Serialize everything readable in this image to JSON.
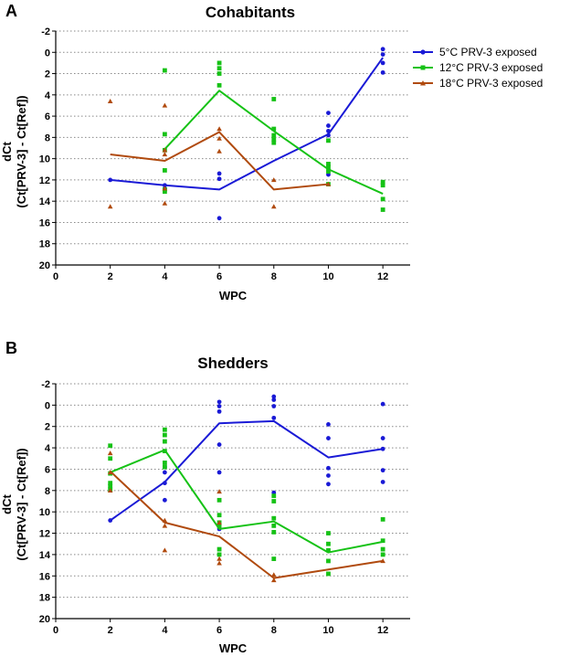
{
  "colors": {
    "5C": "#1a1ad6",
    "12C": "#16c216",
    "18C": "#b04a0e",
    "grid": "#8a8a8a",
    "axis": "#000000"
  },
  "chart_data": [
    {
      "panel": "A",
      "type": "scatter",
      "title": "Cohabitants",
      "xlabel": "WPC",
      "ylabel": "dCt",
      "ylabel2": "(Ct[PRV-3] - Ct[Ref])",
      "xlim": [
        0,
        13
      ],
      "ylim": [
        -2,
        20
      ],
      "y_inverted": true,
      "xticks": [
        0,
        2,
        4,
        6,
        8,
        10,
        12
      ],
      "yticks": [
        -2,
        0,
        2,
        4,
        6,
        8,
        10,
        12,
        14,
        16,
        18,
        20
      ],
      "grid": "horizontal dotted",
      "legend": "top-right",
      "series": [
        {
          "name": "5°C PRV-3 exposed",
          "color_key": "5C",
          "marker": "circle",
          "mean_line": [
            [
              2,
              12.0
            ],
            [
              4,
              12.5
            ],
            [
              6,
              12.9
            ],
            [
              8,
              10.2
            ],
            [
              10,
              7.7
            ],
            [
              12,
              0.5
            ]
          ],
          "points": [
            [
              2,
              12.0
            ],
            [
              4,
              12.5
            ],
            [
              4,
              12.8
            ],
            [
              6,
              11.4
            ],
            [
              6,
              11.9
            ],
            [
              6,
              15.6
            ],
            [
              10,
              5.7
            ],
            [
              10,
              6.9
            ],
            [
              10,
              7.4
            ],
            [
              10,
              7.8
            ],
            [
              10,
              11.5
            ],
            [
              12,
              -0.3
            ],
            [
              12,
              0.2
            ],
            [
              12,
              1.0
            ],
            [
              12,
              1.9
            ]
          ]
        },
        {
          "name": "12°C PRV-3 exposed",
          "color_key": "12C",
          "marker": "square",
          "mean_line": [
            [
              4,
              9.1
            ],
            [
              6,
              3.6
            ],
            [
              8,
              7.4
            ],
            [
              10,
              11.0
            ],
            [
              12,
              13.3
            ]
          ],
          "points": [
            [
              4,
              1.7
            ],
            [
              4,
              7.7
            ],
            [
              4,
              9.2
            ],
            [
              4,
              11.1
            ],
            [
              4,
              12.9
            ],
            [
              4,
              13.1
            ],
            [
              6,
              1.0
            ],
            [
              6,
              1.5
            ],
            [
              6,
              2.0
            ],
            [
              6,
              3.1
            ],
            [
              8,
              4.4
            ],
            [
              8,
              7.2
            ],
            [
              8,
              7.8
            ],
            [
              8,
              8.2
            ],
            [
              8,
              8.5
            ],
            [
              10,
              8.3
            ],
            [
              10,
              10.5
            ],
            [
              10,
              10.8
            ],
            [
              10,
              11.2
            ],
            [
              10,
              12.4
            ],
            [
              12,
              12.2
            ],
            [
              12,
              12.5
            ],
            [
              12,
              13.8
            ],
            [
              12,
              14.8
            ]
          ]
        },
        {
          "name": "18°C PRV-3 exposed",
          "color_key": "18C",
          "marker": "triangle",
          "mean_line": [
            [
              2,
              9.6
            ],
            [
              4,
              10.2
            ],
            [
              6,
              7.5
            ],
            [
              8,
              12.9
            ],
            [
              10,
              12.4
            ]
          ],
          "points": [
            [
              2,
              4.6
            ],
            [
              2,
              14.5
            ],
            [
              4,
              5.0
            ],
            [
              4,
              9.2
            ],
            [
              4,
              9.6
            ],
            [
              4,
              12.8
            ],
            [
              4,
              14.2
            ],
            [
              6,
              7.2
            ],
            [
              6,
              8.1
            ],
            [
              6,
              9.3
            ],
            [
              8,
              12.0
            ],
            [
              8,
              14.5
            ],
            [
              10,
              12.4
            ]
          ]
        }
      ]
    },
    {
      "panel": "B",
      "type": "scatter",
      "title": "Shedders",
      "xlabel": "WPC",
      "ylabel": "dCt",
      "ylabel2": "(Ct[PRV-3] - Ct[Ref])",
      "xlim": [
        0,
        13
      ],
      "ylim": [
        -2,
        20
      ],
      "y_inverted": true,
      "xticks": [
        0,
        2,
        4,
        6,
        8,
        10,
        12
      ],
      "yticks": [
        -2,
        0,
        2,
        4,
        6,
        8,
        10,
        12,
        14,
        16,
        18,
        20
      ],
      "grid": "horizontal dotted",
      "legend": "none",
      "series": [
        {
          "name": "5°C PRV-3 exposed",
          "color_key": "5C",
          "marker": "circle",
          "mean_line": [
            [
              2,
              10.8
            ],
            [
              4,
              7.2
            ],
            [
              6,
              1.7
            ],
            [
              8,
              1.5
            ],
            [
              10,
              4.9
            ],
            [
              12,
              4.1
            ]
          ],
          "points": [
            [
              2,
              10.8
            ],
            [
              4,
              5.8
            ],
            [
              4,
              6.3
            ],
            [
              4,
              7.3
            ],
            [
              4,
              8.9
            ],
            [
              6,
              -0.3
            ],
            [
              6,
              0.1
            ],
            [
              6,
              0.6
            ],
            [
              6,
              3.7
            ],
            [
              6,
              6.3
            ],
            [
              6,
              11.6
            ],
            [
              8,
              -0.8
            ],
            [
              8,
              -0.5
            ],
            [
              8,
              0.1
            ],
            [
              8,
              1.2
            ],
            [
              8,
              8.2
            ],
            [
              10,
              1.8
            ],
            [
              10,
              3.1
            ],
            [
              10,
              5.9
            ],
            [
              10,
              6.6
            ],
            [
              10,
              7.4
            ],
            [
              12,
              -0.1
            ],
            [
              12,
              3.1
            ],
            [
              12,
              4.1
            ],
            [
              12,
              6.1
            ],
            [
              12,
              7.2
            ]
          ]
        },
        {
          "name": "12°C PRV-3 exposed",
          "color_key": "12C",
          "marker": "square",
          "mean_line": [
            [
              2,
              6.3
            ],
            [
              4,
              4.2
            ],
            [
              6,
              11.6
            ],
            [
              8,
              10.9
            ],
            [
              10,
              13.8
            ],
            [
              12,
              12.8
            ]
          ],
          "points": [
            [
              2,
              3.8
            ],
            [
              2,
              5.0
            ],
            [
              2,
              6.4
            ],
            [
              2,
              7.3
            ],
            [
              2,
              7.6
            ],
            [
              2,
              7.9
            ],
            [
              4,
              2.3
            ],
            [
              4,
              2.8
            ],
            [
              4,
              3.4
            ],
            [
              4,
              4.3
            ],
            [
              4,
              5.4
            ],
            [
              4,
              5.8
            ],
            [
              6,
              8.9
            ],
            [
              6,
              10.3
            ],
            [
              6,
              11.0
            ],
            [
              6,
              11.3
            ],
            [
              6,
              13.5
            ],
            [
              6,
              14.0
            ],
            [
              8,
              8.5
            ],
            [
              8,
              9.0
            ],
            [
              8,
              10.6
            ],
            [
              8,
              11.3
            ],
            [
              8,
              11.9
            ],
            [
              8,
              14.4
            ],
            [
              10,
              12.0
            ],
            [
              10,
              13.0
            ],
            [
              10,
              13.6
            ],
            [
              10,
              14.6
            ],
            [
              10,
              15.8
            ],
            [
              12,
              10.7
            ],
            [
              12,
              12.7
            ],
            [
              12,
              13.5
            ],
            [
              12,
              14.0
            ]
          ]
        },
        {
          "name": "18°C PRV-3 exposed",
          "color_key": "18C",
          "marker": "triangle",
          "mean_line": [
            [
              2,
              6.2
            ],
            [
              4,
              11.0
            ],
            [
              6,
              12.3
            ],
            [
              8,
              16.2
            ],
            [
              10,
              15.4
            ],
            [
              12,
              14.6
            ]
          ],
          "points": [
            [
              2,
              4.5
            ],
            [
              2,
              6.3
            ],
            [
              2,
              8.0
            ],
            [
              4,
              10.8
            ],
            [
              4,
              11.3
            ],
            [
              4,
              13.6
            ],
            [
              6,
              8.1
            ],
            [
              6,
              11.0
            ],
            [
              6,
              14.4
            ],
            [
              6,
              14.8
            ],
            [
              8,
              15.9
            ],
            [
              8,
              16.4
            ],
            [
              12,
              14.6
            ]
          ]
        }
      ]
    }
  ]
}
